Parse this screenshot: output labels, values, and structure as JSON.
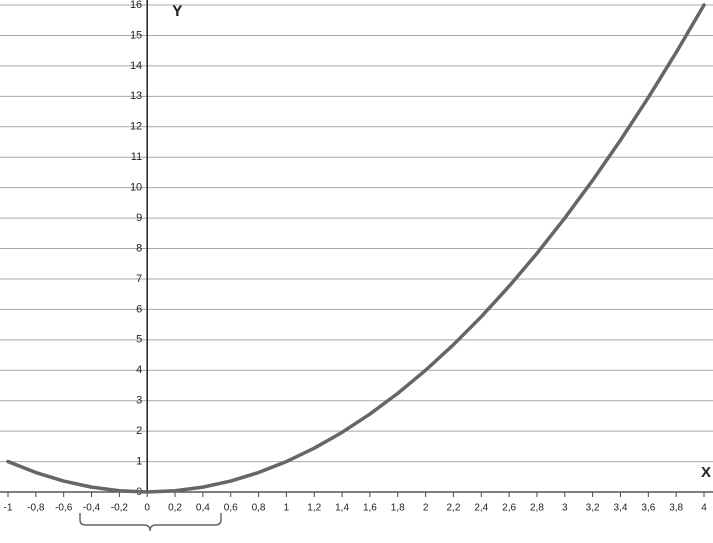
{
  "chart_data": {
    "type": "line",
    "x_label": "X",
    "y_label": "Y",
    "x": [
      -1,
      -0.8,
      -0.6,
      -0.4,
      -0.2,
      0,
      0.2,
      0.4,
      0.6,
      0.8,
      1,
      1.2,
      1.4,
      1.6,
      1.8,
      2,
      2.2,
      2.4,
      2.6,
      2.8,
      3,
      3.2,
      3.4,
      3.6,
      3.8,
      4
    ],
    "values": [
      1,
      0.64,
      0.36,
      0.16,
      0.04,
      0,
      0.04,
      0.16,
      0.36,
      0.64,
      1,
      1.44,
      1.96,
      2.56,
      3.24,
      4,
      4.84,
      5.76,
      6.76,
      7.84,
      9,
      10.24,
      11.56,
      12.96,
      14.44,
      16
    ],
    "color": "#666666",
    "xlim": [
      -1,
      4
    ],
    "ylim": [
      0,
      16
    ],
    "xticks": [
      -1,
      {
        "value": -0.8,
        "label": "-0,8"
      },
      {
        "value": -0.6,
        "label": "-0,6"
      },
      {
        "value": -0.4,
        "label": "-0,4"
      },
      {
        "value": -0.2,
        "label": "-0,2"
      },
      0,
      {
        "value": 0.2,
        "label": "0,2"
      },
      {
        "value": 0.4,
        "label": "0,4"
      },
      {
        "value": 0.6,
        "label": "0,6"
      },
      {
        "value": 0.8,
        "label": "0,8"
      },
      1,
      {
        "value": 1.2,
        "label": "1,2"
      },
      {
        "value": 1.4,
        "label": "1,4"
      },
      {
        "value": 1.6,
        "label": "1,6"
      },
      {
        "value": 1.8,
        "label": "1,8"
      },
      2,
      {
        "value": 2.2,
        "label": "2,2"
      },
      {
        "value": 2.4,
        "label": "2,4"
      },
      {
        "value": 2.6,
        "label": "2,6"
      },
      {
        "value": 2.8,
        "label": "2,8"
      },
      3,
      {
        "value": 3.2,
        "label": "3,2"
      },
      {
        "value": 3.4,
        "label": "3,4"
      },
      {
        "value": 3.6,
        "label": "3,6"
      },
      {
        "value": 3.8,
        "label": "3,8"
      },
      4
    ],
    "yticks": [
      0,
      1,
      2,
      3,
      4,
      5,
      6,
      7,
      8,
      9,
      10,
      11,
      12,
      13,
      14,
      15,
      16
    ],
    "grid": true
  }
}
